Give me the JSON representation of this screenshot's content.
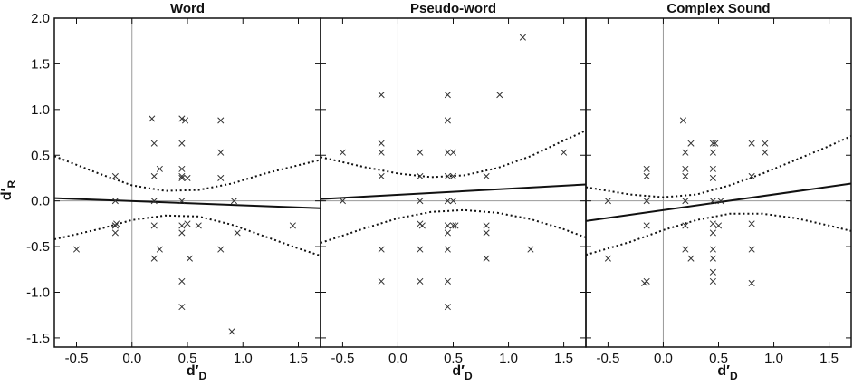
{
  "chart_data": {
    "type": "scatter",
    "ylabel_main": "d′",
    "ylabel_sub": "R",
    "xlabel_main": "d′",
    "xlabel_sub": "D",
    "xlim": [
      -0.7,
      1.7
    ],
    "ylim": [
      -1.6,
      2.0
    ],
    "xticks": [
      "-0.5",
      "0.0",
      "0.5",
      "1.0",
      "1.5"
    ],
    "xtick_values": [
      -0.5,
      0.0,
      0.5,
      1.0,
      1.5
    ],
    "yticks": [
      "-1.5",
      "-1.0",
      "-0.5",
      "0.0",
      "0.5",
      "1.0",
      "1.5",
      "2.0"
    ],
    "ytick_values": [
      -1.5,
      -1.0,
      -0.5,
      0.0,
      0.5,
      1.0,
      1.5,
      2.0
    ],
    "colors": {
      "points": "#333333",
      "line": "#111111",
      "ref": "#9a9a9a",
      "border": "#111111"
    },
    "panels": [
      {
        "title": "Word",
        "points": [
          [
            -0.5,
            -0.53
          ],
          [
            -0.15,
            0.27
          ],
          [
            -0.15,
            0.0
          ],
          [
            -0.15,
            -0.27
          ],
          [
            -0.15,
            -0.27
          ],
          [
            -0.15,
            -0.35
          ],
          [
            -0.14,
            -0.25
          ],
          [
            0.18,
            0.9
          ],
          [
            0.2,
            0.63
          ],
          [
            0.2,
            0.27
          ],
          [
            0.2,
            0.0
          ],
          [
            0.2,
            -0.27
          ],
          [
            0.2,
            -0.63
          ],
          [
            0.25,
            0.35
          ],
          [
            0.25,
            -0.53
          ],
          [
            0.45,
            0.9
          ],
          [
            0.45,
            0.63
          ],
          [
            0.45,
            0.35
          ],
          [
            0.45,
            0.27
          ],
          [
            0.45,
            0.25
          ],
          [
            0.45,
            0.0
          ],
          [
            0.45,
            -0.27
          ],
          [
            0.45,
            -0.35
          ],
          [
            0.45,
            -0.88
          ],
          [
            0.45,
            -1.16
          ],
          [
            0.48,
            0.88
          ],
          [
            0.5,
            0.25
          ],
          [
            0.5,
            -0.25
          ],
          [
            0.52,
            -0.63
          ],
          [
            0.6,
            -0.27
          ],
          [
            0.8,
            0.88
          ],
          [
            0.8,
            0.53
          ],
          [
            0.8,
            0.25
          ],
          [
            0.8,
            -0.53
          ],
          [
            0.9,
            -1.43
          ],
          [
            0.92,
            0.0
          ],
          [
            0.95,
            -0.35
          ],
          [
            1.45,
            -0.27
          ]
        ],
        "fit": [
          [
            -0.7,
            0.03
          ],
          [
            1.7,
            -0.08
          ]
        ],
        "ci_upper": [
          [
            -0.7,
            0.49
          ],
          [
            -0.3,
            0.3
          ],
          [
            0.0,
            0.17
          ],
          [
            0.3,
            0.11
          ],
          [
            0.6,
            0.12
          ],
          [
            0.9,
            0.19
          ],
          [
            1.2,
            0.3
          ],
          [
            1.5,
            0.39
          ],
          [
            1.7,
            0.45
          ]
        ],
        "ci_lower": [
          [
            -0.7,
            -0.42
          ],
          [
            -0.3,
            -0.31
          ],
          [
            0.0,
            -0.21
          ],
          [
            0.3,
            -0.16
          ],
          [
            0.6,
            -0.17
          ],
          [
            0.9,
            -0.26
          ],
          [
            1.2,
            -0.39
          ],
          [
            1.5,
            -0.52
          ],
          [
            1.7,
            -0.6
          ]
        ]
      },
      {
        "title": "Pseudo-word",
        "points": [
          [
            -0.5,
            0.53
          ],
          [
            -0.5,
            0.0
          ],
          [
            -0.15,
            1.16
          ],
          [
            -0.15,
            0.63
          ],
          [
            -0.15,
            0.53
          ],
          [
            -0.15,
            0.27
          ],
          [
            -0.15,
            -0.53
          ],
          [
            -0.15,
            -0.88
          ],
          [
            0.2,
            0.53
          ],
          [
            0.2,
            0.27
          ],
          [
            0.2,
            0.0
          ],
          [
            0.2,
            -0.25
          ],
          [
            0.2,
            -0.53
          ],
          [
            0.2,
            -0.88
          ],
          [
            0.22,
            -0.27
          ],
          [
            0.45,
            1.16
          ],
          [
            0.45,
            0.88
          ],
          [
            0.45,
            0.53
          ],
          [
            0.45,
            0.27
          ],
          [
            0.45,
            0.0
          ],
          [
            0.45,
            -0.27
          ],
          [
            0.45,
            -0.35
          ],
          [
            0.45,
            -0.53
          ],
          [
            0.45,
            -0.88
          ],
          [
            0.45,
            -1.16
          ],
          [
            0.5,
            0.53
          ],
          [
            0.5,
            0.27
          ],
          [
            0.5,
            0.0
          ],
          [
            0.5,
            -0.27
          ],
          [
            0.52,
            -0.27
          ],
          [
            0.8,
            0.27
          ],
          [
            0.8,
            -0.27
          ],
          [
            0.8,
            -0.35
          ],
          [
            0.8,
            -0.63
          ],
          [
            0.92,
            1.16
          ],
          [
            1.13,
            1.79
          ],
          [
            1.2,
            -0.53
          ],
          [
            1.5,
            0.53
          ]
        ],
        "fit": [
          [
            -0.7,
            0.02
          ],
          [
            1.7,
            0.18
          ]
        ],
        "ci_upper": [
          [
            -0.7,
            0.48
          ],
          [
            -0.3,
            0.37
          ],
          [
            0.0,
            0.3
          ],
          [
            0.3,
            0.26
          ],
          [
            0.6,
            0.28
          ],
          [
            0.9,
            0.36
          ],
          [
            1.2,
            0.49
          ],
          [
            1.5,
            0.66
          ],
          [
            1.7,
            0.77
          ]
        ],
        "ci_lower": [
          [
            -0.7,
            -0.46
          ],
          [
            -0.3,
            -0.3
          ],
          [
            0.0,
            -0.19
          ],
          [
            0.3,
            -0.12
          ],
          [
            0.6,
            -0.1
          ],
          [
            0.9,
            -0.13
          ],
          [
            1.2,
            -0.2
          ],
          [
            1.5,
            -0.31
          ],
          [
            1.7,
            -0.4
          ]
        ]
      },
      {
        "title": "Complex Sound",
        "points": [
          [
            -0.5,
            0.0
          ],
          [
            -0.5,
            -0.63
          ],
          [
            -0.15,
            0.35
          ],
          [
            -0.15,
            0.27
          ],
          [
            -0.15,
            0.0
          ],
          [
            -0.15,
            -0.27
          ],
          [
            -0.15,
            -0.88
          ],
          [
            -0.17,
            -0.9
          ],
          [
            0.18,
            0.88
          ],
          [
            0.2,
            0.53
          ],
          [
            0.2,
            0.35
          ],
          [
            0.2,
            0.27
          ],
          [
            0.2,
            0.0
          ],
          [
            0.2,
            -0.27
          ],
          [
            0.2,
            -0.53
          ],
          [
            0.25,
            0.63
          ],
          [
            0.25,
            -0.63
          ],
          [
            0.45,
            0.63
          ],
          [
            0.45,
            0.53
          ],
          [
            0.45,
            0.35
          ],
          [
            0.45,
            0.25
          ],
          [
            0.45,
            0.0
          ],
          [
            0.45,
            -0.25
          ],
          [
            0.45,
            -0.35
          ],
          [
            0.45,
            -0.53
          ],
          [
            0.45,
            -0.63
          ],
          [
            0.45,
            -0.78
          ],
          [
            0.45,
            -0.88
          ],
          [
            0.47,
            0.63
          ],
          [
            0.5,
            -0.27
          ],
          [
            0.52,
            0.0
          ],
          [
            0.8,
            0.63
          ],
          [
            0.8,
            0.27
          ],
          [
            0.8,
            -0.25
          ],
          [
            0.8,
            -0.53
          ],
          [
            0.8,
            -0.9
          ],
          [
            0.92,
            0.63
          ],
          [
            0.92,
            0.53
          ]
        ],
        "fit": [
          [
            -0.7,
            -0.22
          ],
          [
            1.7,
            0.19
          ]
        ],
        "ci_upper": [
          [
            -0.7,
            0.15
          ],
          [
            -0.3,
            0.07
          ],
          [
            0.0,
            0.04
          ],
          [
            0.3,
            0.07
          ],
          [
            0.6,
            0.17
          ],
          [
            0.9,
            0.3
          ],
          [
            1.2,
            0.45
          ],
          [
            1.5,
            0.6
          ],
          [
            1.7,
            0.71
          ]
        ],
        "ci_lower": [
          [
            -0.7,
            -0.59
          ],
          [
            -0.3,
            -0.45
          ],
          [
            0.0,
            -0.32
          ],
          [
            0.3,
            -0.21
          ],
          [
            0.6,
            -0.14
          ],
          [
            0.9,
            -0.14
          ],
          [
            1.2,
            -0.19
          ],
          [
            1.5,
            -0.27
          ],
          [
            1.7,
            -0.33
          ]
        ]
      }
    ]
  }
}
